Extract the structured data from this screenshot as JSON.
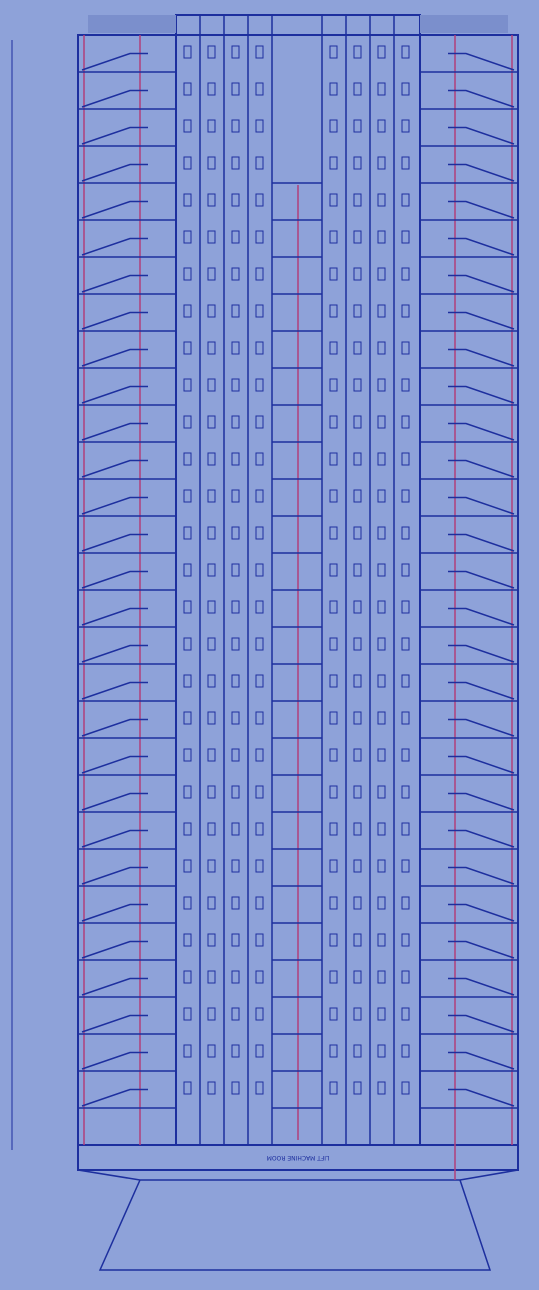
{
  "drawing": {
    "machine_room_label": "LIFT MACHINE ROOM"
  }
}
